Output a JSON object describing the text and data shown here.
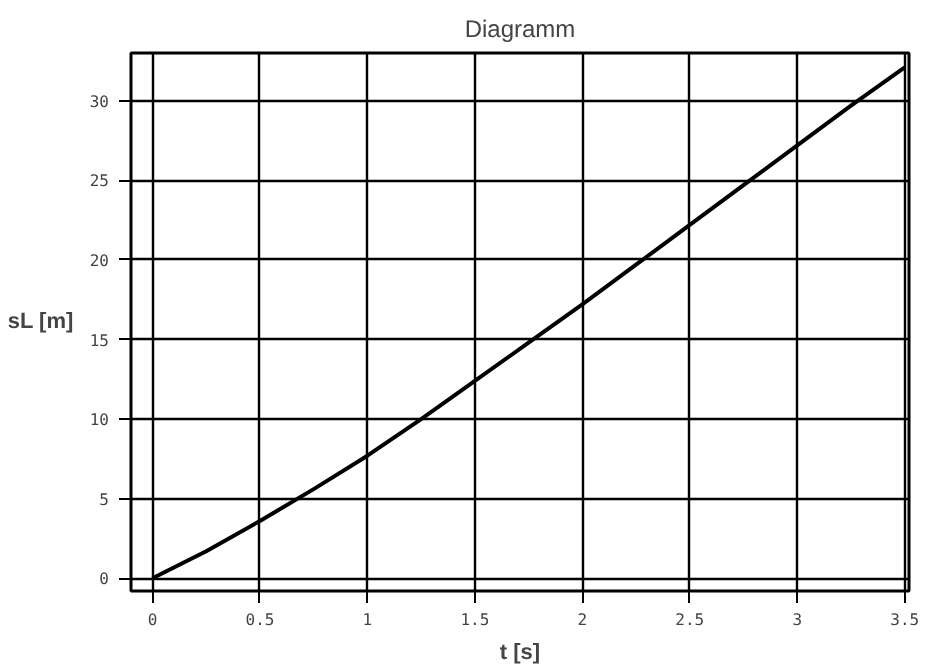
{
  "chart_data": {
    "type": "line",
    "title": "Diagramm",
    "xlabel": "t [s]",
    "ylabel": "sL [m]",
    "x": [
      0,
      0.25,
      0.5,
      0.75,
      1,
      1.25,
      1.5,
      1.75,
      2,
      2.25,
      2.5,
      2.75,
      3,
      3.25,
      3.5
    ],
    "series": [
      {
        "color": "#000000",
        "values": [
          0,
          1.7,
          3.6,
          5.6,
          7.7,
          10,
          12.4,
          14.8,
          17.2,
          19.7,
          22.2,
          24.7,
          27.2,
          29.7,
          32.1
        ]
      }
    ],
    "xlim": [
      -0.1,
      3.52
    ],
    "ylim": [
      -0.8,
      33
    ],
    "xticks": [
      0,
      0.5,
      1,
      1.5,
      2,
      2.5,
      3,
      3.5
    ],
    "yticks": [
      0,
      5,
      10,
      15,
      20,
      25,
      30
    ],
    "grid": true,
    "line_style": "solid"
  }
}
